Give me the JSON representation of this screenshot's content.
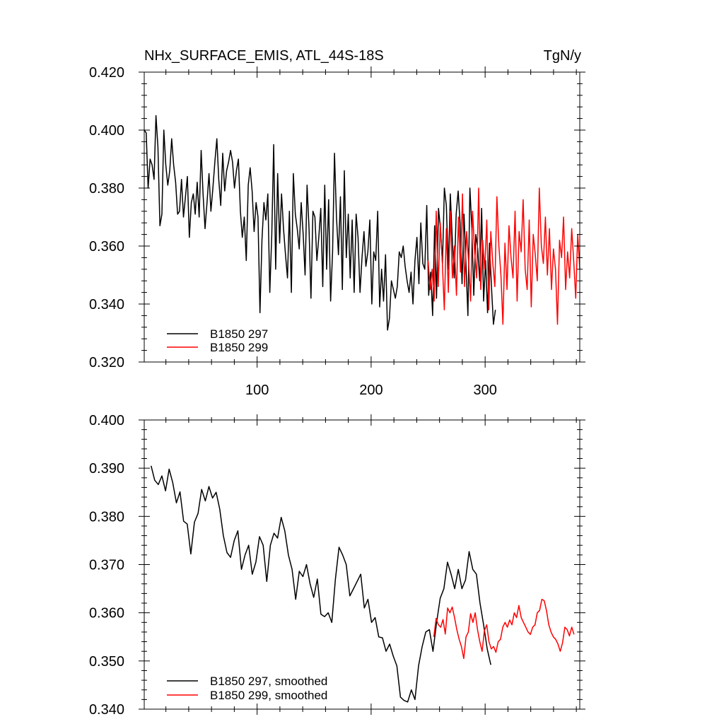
{
  "chart_data": [
    {
      "type": "line",
      "title": "NHx_SURFACE_EMIS, ATL_44S-18S",
      "units": "TgN/y",
      "xlim": [
        1,
        383
      ],
      "ylim": [
        0.32,
        0.42
      ],
      "y_ticks": [
        "0.320",
        "0.340",
        "0.360",
        "0.380",
        "0.400",
        "0.420"
      ],
      "x_ticks": [
        "100",
        "200",
        "300"
      ],
      "legend_position": "bottom-left",
      "series": [
        {
          "name": "B1850 297",
          "color": "#000000",
          "x_start": 1,
          "values": [
            0.4,
            0.399,
            0.38,
            0.39,
            0.388,
            0.383,
            0.405,
            0.394,
            0.367,
            0.371,
            0.4,
            0.388,
            0.381,
            0.386,
            0.397,
            0.388,
            0.382,
            0.371,
            0.372,
            0.383,
            0.37,
            0.377,
            0.384,
            0.363,
            0.375,
            0.378,
            0.371,
            0.382,
            0.37,
            0.393,
            0.378,
            0.366,
            0.375,
            0.385,
            0.372,
            0.38,
            0.389,
            0.397,
            0.383,
            0.374,
            0.392,
            0.379,
            0.386,
            0.389,
            0.393,
            0.389,
            0.38,
            0.386,
            0.39,
            0.372,
            0.363,
            0.37,
            0.355,
            0.381,
            0.387,
            0.379,
            0.365,
            0.375,
            0.37,
            0.337,
            0.362,
            0.375,
            0.369,
            0.378,
            0.344,
            0.364,
            0.395,
            0.352,
            0.385,
            0.361,
            0.378,
            0.366,
            0.357,
            0.349,
            0.372,
            0.344,
            0.385,
            0.371,
            0.366,
            0.359,
            0.375,
            0.364,
            0.35,
            0.381,
            0.366,
            0.342,
            0.372,
            0.37,
            0.355,
            0.363,
            0.373,
            0.346,
            0.381,
            0.352,
            0.376,
            0.341,
            0.358,
            0.392,
            0.37,
            0.357,
            0.377,
            0.345,
            0.386,
            0.356,
            0.371,
            0.349,
            0.369,
            0.344,
            0.371,
            0.363,
            0.344,
            0.356,
            0.365,
            0.353,
            0.358,
            0.369,
            0.34,
            0.358,
            0.355,
            0.372,
            0.339,
            0.352,
            0.341,
            0.357,
            0.331,
            0.335,
            0.348,
            0.345,
            0.342,
            0.346,
            0.358,
            0.356,
            0.36,
            0.353,
            0.348,
            0.344,
            0.351,
            0.34,
            0.355,
            0.363,
            0.347,
            0.368,
            0.354,
            0.352,
            0.374,
            0.343,
            0.351,
            0.336,
            0.367,
            0.342,
            0.373,
            0.366,
            0.354,
            0.38,
            0.374,
            0.352,
            0.378,
            0.363,
            0.349,
            0.371,
            0.379,
            0.368,
            0.347,
            0.371,
            0.354,
            0.336,
            0.38,
            0.366,
            0.343,
            0.364,
            0.359,
            0.348,
            0.373,
            0.341,
            0.355,
            0.337,
            0.361,
            0.346,
            0.333,
            0.338
          ],
          "note": "The series runs from x=1 to about x=309."
        },
        {
          "name": "B1850 299",
          "color": "#ff0000",
          "x_start": 250,
          "values": [
            0.355,
            0.345,
            0.352,
            0.341,
            0.372,
            0.346,
            0.368,
            0.355,
            0.338,
            0.366,
            0.344,
            0.372,
            0.349,
            0.36,
            0.343,
            0.37,
            0.351,
            0.378,
            0.346,
            0.365,
            0.355,
            0.341,
            0.372,
            0.358,
            0.349,
            0.38,
            0.345,
            0.362,
            0.352,
            0.369,
            0.338,
            0.365,
            0.354,
            0.346,
            0.377,
            0.36,
            0.35,
            0.333,
            0.361,
            0.345,
            0.367,
            0.356,
            0.349,
            0.372,
            0.341,
            0.365,
            0.358,
            0.376,
            0.352,
            0.345,
            0.369,
            0.339,
            0.364,
            0.357,
            0.348,
            0.38,
            0.36,
            0.354,
            0.37,
            0.35,
            0.366,
            0.345,
            0.359,
            0.352,
            0.333,
            0.362,
            0.356,
            0.37,
            0.345,
            0.358,
            0.349,
            0.366,
            0.355,
            0.342,
            0.364,
            0.352
          ],
          "note": "The series runs from x=250 to x=383."
        }
      ]
    },
    {
      "type": "line",
      "xlim": [
        1,
        383
      ],
      "ylim": [
        0.34,
        0.4
      ],
      "y_ticks": [
        "0.340",
        "0.350",
        "0.360",
        "0.370",
        "0.380",
        "0.390",
        "0.400"
      ],
      "legend_position": "bottom-left",
      "series": [
        {
          "name": "B1850 297, smoothed",
          "color": "#000000",
          "x_start": 7,
          "values": [
            0.3905,
            0.3875,
            0.3866,
            0.3884,
            0.3853,
            0.3898,
            0.387,
            0.3828,
            0.3851,
            0.379,
            0.3784,
            0.3722,
            0.3788,
            0.3806,
            0.3856,
            0.3832,
            0.3862,
            0.3838,
            0.385,
            0.3815,
            0.376,
            0.3725,
            0.3715,
            0.375,
            0.377,
            0.369,
            0.372,
            0.374,
            0.368,
            0.3705,
            0.3758,
            0.374,
            0.3665,
            0.374,
            0.3765,
            0.3755,
            0.3798,
            0.377,
            0.372,
            0.369,
            0.3628,
            0.3686,
            0.3675,
            0.37,
            0.366,
            0.3632,
            0.367,
            0.3597,
            0.3592,
            0.36,
            0.358,
            0.367,
            0.3736,
            0.372,
            0.37,
            0.3635,
            0.365,
            0.3665,
            0.368,
            0.361,
            0.3628,
            0.358,
            0.359,
            0.355,
            0.3548,
            0.352,
            0.3535,
            0.351,
            0.349,
            0.3425,
            0.3418,
            0.3415,
            0.344,
            0.342,
            0.349,
            0.353,
            0.356,
            0.3565,
            0.352,
            0.358,
            0.363,
            0.365,
            0.3705,
            0.368,
            0.365,
            0.369,
            0.365,
            0.3668,
            0.3727,
            0.369,
            0.368,
            0.362,
            0.3575,
            0.3525,
            0.3492
          ],
          "note": "The smoothed series runs from about x=7 to x=305."
        },
        {
          "name": "B1850 299, smoothed",
          "color": "#ff0000",
          "x_start": 255,
          "values": [
            0.355,
            0.3588,
            0.3575,
            0.357,
            0.3586,
            0.3556,
            0.361,
            0.36,
            0.3612,
            0.359,
            0.3565,
            0.3545,
            0.353,
            0.3505,
            0.355,
            0.356,
            0.3598,
            0.358,
            0.36,
            0.3565,
            0.354,
            0.352,
            0.3563,
            0.3575,
            0.354,
            0.3525,
            0.353,
            0.3518,
            0.354,
            0.3545,
            0.357,
            0.358,
            0.357,
            0.3585,
            0.3575,
            0.36,
            0.359,
            0.3615,
            0.359,
            0.358,
            0.357,
            0.356,
            0.3555,
            0.357,
            0.3575,
            0.36,
            0.3605,
            0.3628,
            0.3625,
            0.3605,
            0.3575,
            0.356,
            0.355,
            0.3545,
            0.3535,
            0.352,
            0.3538,
            0.357,
            0.3565,
            0.3552,
            0.357,
            0.3555
          ],
          "note": "The smoothed series runs from about x=255 to x=378."
        }
      ]
    }
  ]
}
